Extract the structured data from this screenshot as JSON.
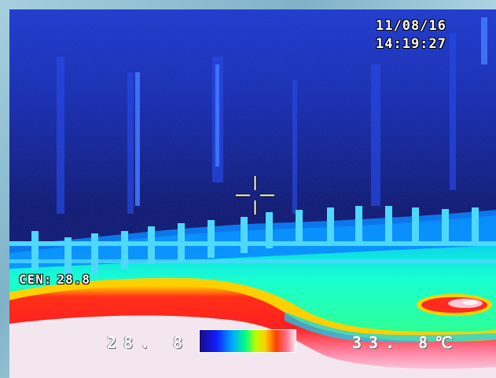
{
  "camera_overlay": {
    "date": "11/08/16",
    "time": "14:19:27",
    "center_label": "CEN:",
    "center_value": "28.8"
  },
  "temperature_scale": {
    "min": "28. 8",
    "max": "33. 8",
    "unit": "℃"
  },
  "colors": {
    "cold": "#0b0f6a",
    "mid": "#00ff80",
    "hot": "#ff2020",
    "hottest": "#f8e8ee"
  },
  "icons": {
    "crosshair": "crosshair-icon"
  }
}
